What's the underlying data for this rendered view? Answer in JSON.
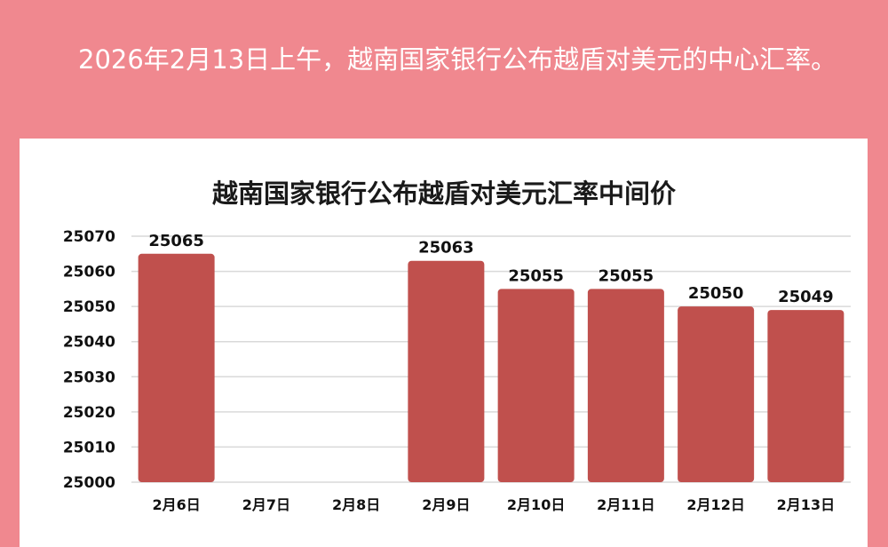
{
  "headline": "2026年2月13日上午，越南国家银行公布越盾对美元的中心汇率。",
  "colors": {
    "background": "#f0888f",
    "bar": "#c0504d",
    "grid": "#d9d9d9"
  },
  "chart_data": {
    "type": "bar",
    "title": "越南国家银行公布越盾对美元汇率中间价",
    "xlabel": "",
    "ylabel": "",
    "ylim": [
      25000,
      25070
    ],
    "yticks": [
      25000,
      25010,
      25020,
      25030,
      25040,
      25050,
      25060,
      25070
    ],
    "grid": true,
    "legend": "none",
    "categories": [
      "2月6日",
      "2月7日",
      "2月8日",
      "2月9日",
      "2月10日",
      "2月11日",
      "2月12日",
      "2月13日"
    ],
    "values": [
      25065,
      null,
      null,
      25063,
      25055,
      25055,
      25050,
      25049
    ],
    "labels": [
      "25065",
      "",
      "",
      "25063",
      "25055",
      "25055",
      "25050",
      "25049"
    ]
  }
}
